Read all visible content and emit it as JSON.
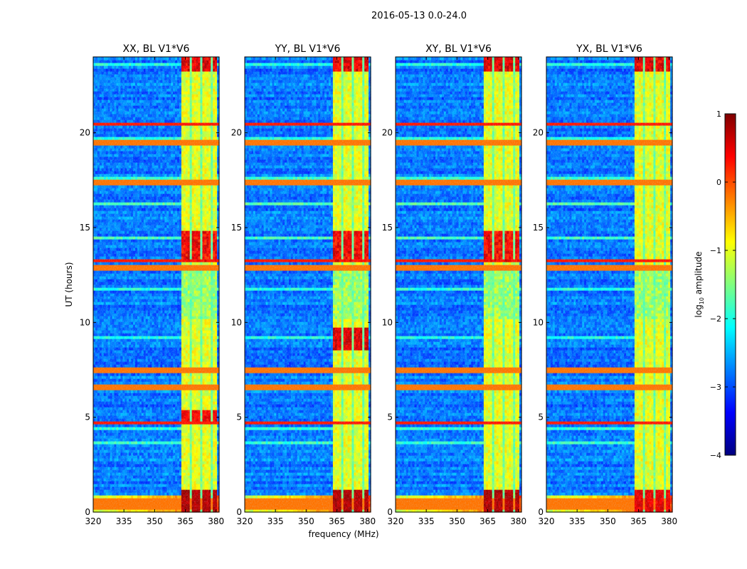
{
  "chart_data": {
    "type": "heatmap",
    "suptitle": "2016-05-13 0.0-24.0",
    "xlabel": "frequency (MHz)",
    "ylabel": "UT (hours)",
    "xlim": [
      320,
      381.5
    ],
    "ylim": [
      0,
      24
    ],
    "xticks": [
      320,
      335,
      350,
      365,
      380
    ],
    "yticks": [
      0,
      5,
      10,
      15,
      20
    ],
    "colormap": "jet",
    "colorbar": {
      "label": "log10 amplitude",
      "label_main": "log",
      "label_sub": "10",
      "label_rest": " amplitude",
      "range": [
        -4,
        1
      ],
      "ticks": [
        1,
        0,
        -1,
        -2,
        -3,
        -4
      ],
      "tick_labels": [
        "1",
        "0",
        "−1",
        "−2",
        "−3",
        "−4"
      ]
    },
    "panels": [
      {
        "title": "XX, BL V1*V6",
        "band_pattern": "strong-low-and-mid"
      },
      {
        "title": "YY, BL V1*V6",
        "band_pattern": "strong-low-and-9h"
      },
      {
        "title": "XY, BL V1*V6",
        "band_pattern": "strong-low"
      },
      {
        "title": "YX, BL V1*V6",
        "band_pattern": "moderate"
      }
    ],
    "features": {
      "rfi_band_mhz": [
        363.5,
        380
      ],
      "rfi_channels_mhz": [
        363.5,
        368.5,
        373.5,
        378.5
      ],
      "bright_rows_hours": [
        0.3,
        0.6,
        4.7,
        6.6,
        7.5,
        12.9,
        13.3,
        17.4,
        19.5,
        20.5
      ],
      "low_freq_level_log10": -2.8,
      "rfi_band_level_log10": -1.0
    }
  }
}
